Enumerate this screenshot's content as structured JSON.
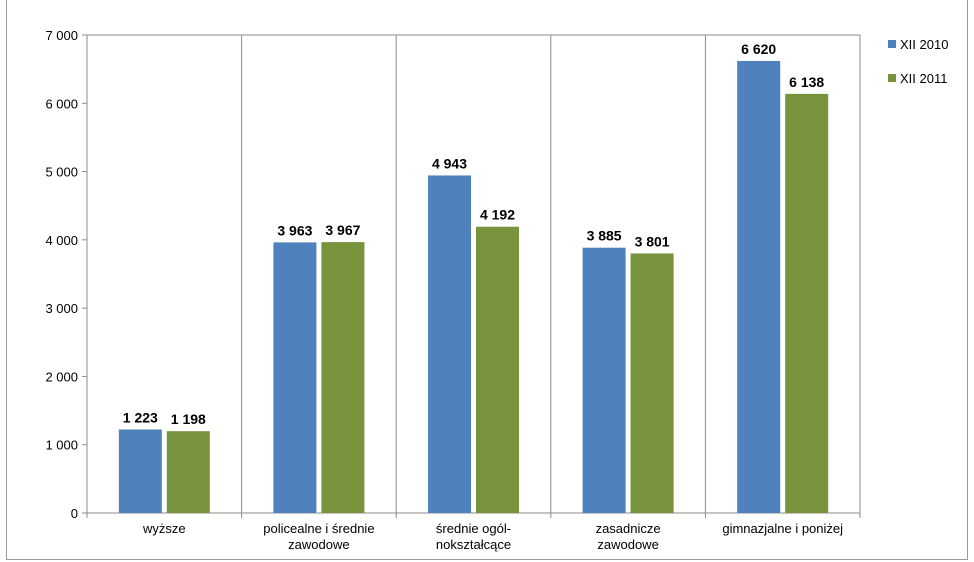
{
  "chart_data": {
    "type": "bar",
    "title": "",
    "xlabel": "",
    "ylabel": "",
    "categories": [
      "wyższe",
      "policealne i średnie zawodowe",
      "średnie ogól-nokształcące",
      "zasadnicze zawodowe",
      "gimnazjalne i poniżej"
    ],
    "category_lines": [
      [
        "wyższe"
      ],
      [
        "policealne i średnie",
        "zawodowe"
      ],
      [
        "średnie ogól-",
        "nokształcące"
      ],
      [
        "zasadnicze",
        "zawodowe"
      ],
      [
        "gimnazjalne i poniżej"
      ]
    ],
    "series": [
      {
        "name": "XII 2010",
        "values": [
          1223,
          3963,
          4943,
          3885,
          6620
        ],
        "labels": [
          "1 223",
          "3 963",
          "4 943",
          "3 885",
          "6 620"
        ],
        "color": "#4f81bd"
      },
      {
        "name": "XII 2011",
        "values": [
          1198,
          3967,
          4192,
          3801,
          6138
        ],
        "labels": [
          "1 198",
          "3 967",
          "4 192",
          "3 801",
          "6 138"
        ],
        "color": "#77933c"
      }
    ],
    "ylim": [
      0,
      7000
    ],
    "yticks": [
      0,
      1000,
      2000,
      3000,
      4000,
      5000,
      6000,
      7000
    ],
    "ytick_labels": [
      "0",
      "1 000",
      "2 000",
      "3 000",
      "4 000",
      "5 000",
      "6 000",
      "7 000"
    ],
    "grid": "vertical",
    "legend_position": "right"
  }
}
